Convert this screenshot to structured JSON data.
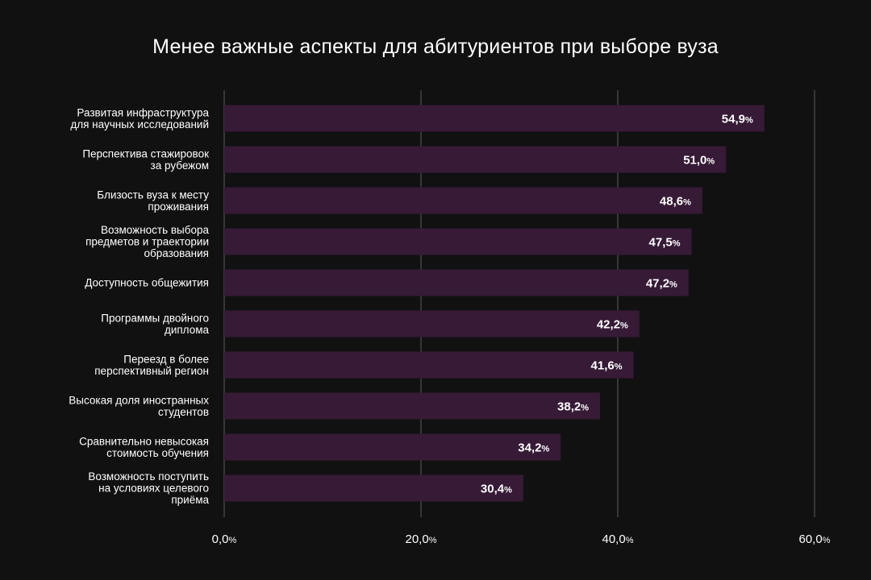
{
  "chart_data": {
    "type": "bar",
    "orientation": "horizontal",
    "title": "Менее важные аспекты для абитуриентов при выборе вуза",
    "xlabel": "",
    "ylabel": "",
    "categories": [
      [
        "Развитая инфраструктура",
        "для научных исследований"
      ],
      [
        "Перспектива стажировок",
        "за рубежом"
      ],
      [
        "Близость вуза к месту",
        "проживания"
      ],
      [
        "Возможность выбора",
        "предметов и траектории",
        "образования"
      ],
      [
        "Доступность общежития"
      ],
      [
        "Программы двойного",
        "диплома"
      ],
      [
        "Переезд в более",
        "перспективный регион"
      ],
      [
        "Высокая доля иностранных",
        "студентов"
      ],
      [
        "Сравнительно невысокая",
        "стоимость обучения"
      ],
      [
        "Возможность поступить",
        "на условиях целевого",
        "приёма"
      ]
    ],
    "values": [
      54.9,
      51.0,
      48.6,
      47.5,
      47.2,
      42.2,
      41.6,
      38.2,
      34.2,
      30.4
    ],
    "value_labels": [
      "54,9",
      "51,0",
      "48,6",
      "47,5",
      "47,2",
      "42,2",
      "41,6",
      "38,2",
      "34,2",
      "30,4"
    ],
    "value_unit": "%",
    "xlim": [
      0,
      60
    ],
    "xticks": [
      0,
      20,
      40,
      60
    ],
    "xtick_labels": [
      "0,0",
      "20,0",
      "40,0",
      "60,0"
    ],
    "grid": true,
    "bar_color": "#361a36",
    "grid_color": "#5a5a5a",
    "background": "#111111"
  }
}
